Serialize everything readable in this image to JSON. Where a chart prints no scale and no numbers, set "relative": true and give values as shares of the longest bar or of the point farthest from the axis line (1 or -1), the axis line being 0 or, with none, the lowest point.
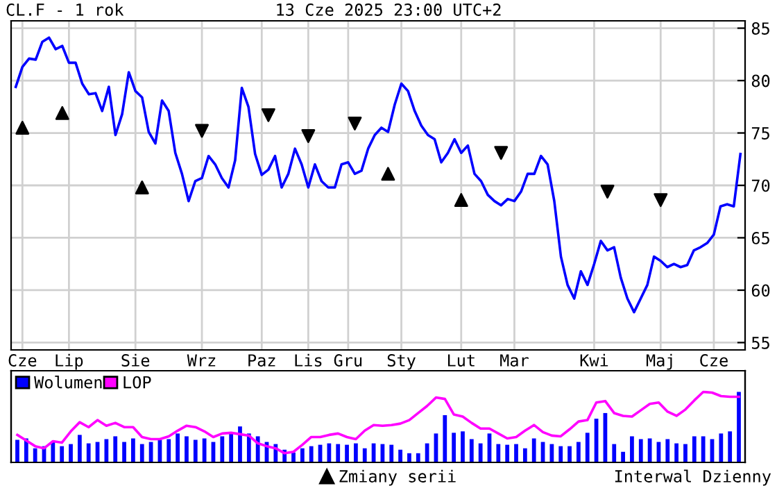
{
  "chart_data": [
    {
      "type": "line",
      "title": "CL.F - 1 rok",
      "subtitle": "13 Cze 2025 23:00 UTC+2",
      "annotations": [
        "Interwal Dzienny"
      ],
      "ylim": [
        54.3,
        85.7
      ],
      "yticks": [
        55,
        60,
        65,
        70,
        75,
        80,
        85
      ],
      "grid": true,
      "legend": "bottom",
      "categories": [
        null,
        "Cze",
        null,
        null,
        null,
        null,
        null,
        null,
        "Lip",
        null,
        null,
        null,
        null,
        null,
        null,
        null,
        null,
        null,
        "Sie",
        null,
        null,
        null,
        null,
        null,
        null,
        null,
        null,
        null,
        "Wrz",
        null,
        null,
        null,
        null,
        null,
        null,
        null,
        null,
        "Paz",
        null,
        null,
        null,
        null,
        null,
        null,
        "Lis",
        null,
        null,
        null,
        null,
        null,
        "Gru",
        null,
        null,
        null,
        null,
        null,
        null,
        null,
        "Sty",
        null,
        null,
        null,
        null,
        null,
        null,
        null,
        null,
        "Lut",
        null,
        null,
        null,
        null,
        null,
        null,
        null,
        "Mar",
        null,
        null,
        null,
        null,
        null,
        null,
        null,
        null,
        null,
        null,
        null,
        "Kwi",
        null,
        null,
        null,
        null,
        null,
        null,
        null,
        null,
        null,
        "Maj",
        null,
        null,
        null,
        null,
        null,
        null,
        null,
        "Cze",
        null,
        null,
        null,
        null
      ],
      "series": [
        {
          "color": "#0000ff",
          "values": [
            79.4,
            81.3,
            82.1,
            82.0,
            83.7,
            84.1,
            83.0,
            83.3,
            81.7,
            81.7,
            79.7,
            78.7,
            78.8,
            77.1,
            79.4,
            74.8,
            76.8,
            80.8,
            79.0,
            78.4,
            75.1,
            74.0,
            78.1,
            77.1,
            73.1,
            71.1,
            68.5,
            70.4,
            70.7,
            72.8,
            72.0,
            70.7,
            69.8,
            72.4,
            79.3,
            77.5,
            73.0,
            71.0,
            71.5,
            72.8,
            69.8,
            71.1,
            73.5,
            72.0,
            69.8,
            72.0,
            70.4,
            69.8,
            69.8,
            72.0,
            72.2,
            71.1,
            71.4,
            73.5,
            74.8,
            75.5,
            75.1,
            77.7,
            79.7,
            79.0,
            77.1,
            75.7,
            74.8,
            74.4,
            72.2,
            73.1,
            74.4,
            73.1,
            73.8,
            71.1,
            70.4,
            69.1,
            68.5,
            68.1,
            68.7,
            68.5,
            69.4,
            71.1,
            71.1,
            72.8,
            72.0,
            68.5,
            63.2,
            60.5,
            59.2,
            61.8,
            60.5,
            62.5,
            64.7,
            63.8,
            64.1,
            61.2,
            59.2,
            57.9,
            59.2,
            60.5,
            63.2,
            62.8,
            62.2,
            62.5,
            62.2,
            62.4,
            63.8,
            64.1,
            64.5,
            65.3,
            68.0,
            68.2,
            68.0,
            73.0
          ]
        },
        {
          "type": "scatter",
          "name": "Zmiany serii",
          "color": "#000000",
          "marker": "triangle",
          "values": [
            null,
            75.5,
            null,
            null,
            null,
            null,
            null,
            76.9,
            null,
            null,
            null,
            null,
            null,
            null,
            null,
            null,
            null,
            null,
            null,
            69.8,
            null,
            null,
            null,
            null,
            null,
            null,
            null,
            null,
            null,
            null,
            null,
            null,
            null,
            null,
            null,
            null,
            null,
            null,
            null,
            null,
            null,
            null,
            null,
            null,
            null,
            null,
            null,
            null,
            null,
            null,
            null,
            null,
            null,
            null,
            null,
            null,
            71.1,
            null,
            null,
            null,
            null,
            null,
            null,
            null,
            null,
            null,
            null,
            68.6,
            null,
            null,
            null,
            null,
            null,
            null,
            null,
            null,
            null,
            null,
            null,
            null,
            null,
            null,
            null,
            null,
            null,
            null,
            null,
            null,
            null,
            null,
            null,
            null,
            null,
            null,
            null,
            null,
            null,
            null,
            null,
            null,
            null,
            null,
            null,
            null,
            null,
            null,
            null,
            null,
            null,
            null
          ]
        },
        {
          "type": "scatter",
          "color": "#000000",
          "marker": "triangle_down",
          "values": [
            null,
            null,
            null,
            null,
            null,
            null,
            null,
            null,
            null,
            null,
            null,
            null,
            null,
            null,
            null,
            null,
            null,
            null,
            null,
            null,
            null,
            null,
            null,
            null,
            null,
            null,
            null,
            null,
            75.2,
            null,
            null,
            null,
            null,
            null,
            null,
            null,
            null,
            null,
            76.7,
            null,
            null,
            null,
            null,
            null,
            74.7,
            null,
            null,
            null,
            null,
            null,
            null,
            75.9,
            null,
            null,
            null,
            null,
            null,
            null,
            null,
            null,
            null,
            null,
            null,
            null,
            null,
            null,
            null,
            null,
            null,
            null,
            null,
            null,
            null,
            73.1,
            null,
            null,
            null,
            null,
            null,
            null,
            null,
            null,
            null,
            null,
            null,
            null,
            null,
            null,
            null,
            69.4,
            null,
            null,
            null,
            null,
            null,
            null,
            null,
            68.6,
            null,
            null,
            null,
            null,
            null,
            null,
            null,
            null,
            null,
            null,
            null,
            null
          ]
        }
      ]
    },
    {
      "type": "bar",
      "relative": true,
      "legend": "top left",
      "categories": [
        null,
        null,
        null,
        null,
        null,
        null,
        null,
        null,
        null,
        null,
        null,
        null,
        null,
        null,
        null,
        null,
        null,
        null,
        null,
        null,
        null,
        null,
        null,
        null,
        null,
        null,
        null,
        null,
        null,
        null,
        null,
        null,
        null,
        null,
        null,
        null,
        null,
        null,
        null,
        null,
        null,
        null,
        null,
        null,
        null,
        null,
        null,
        null,
        null,
        null,
        null,
        null,
        null,
        null,
        null,
        null,
        null,
        null,
        null,
        null,
        null,
        null,
        null,
        null,
        null,
        null,
        null,
        null,
        null,
        null,
        null,
        null,
        null,
        null,
        null,
        null,
        null,
        null,
        null,
        null,
        null,
        null
      ],
      "series": [
        {
          "name": "Wolumen",
          "color": "#0000ff",
          "values": [
            0.32,
            0.34,
            0.2,
            0.23,
            0.29,
            0.23,
            0.26,
            0.39,
            0.27,
            0.29,
            0.33,
            0.37,
            0.29,
            0.34,
            0.26,
            0.29,
            0.32,
            0.33,
            0.41,
            0.37,
            0.32,
            0.34,
            0.29,
            0.37,
            0.41,
            0.51,
            0.41,
            0.37,
            0.29,
            0.26,
            0.18,
            0.14,
            0.2,
            0.23,
            0.25,
            0.27,
            0.26,
            0.25,
            0.27,
            0.2,
            0.27,
            0.26,
            0.25,
            0.18,
            0.13,
            0.13,
            0.27,
            0.41,
            0.67,
            0.42,
            0.44,
            0.33,
            0.27,
            0.41,
            0.26,
            0.25,
            0.26,
            0.2,
            0.34,
            0.29,
            0.26,
            0.23,
            0.23,
            0.29,
            0.42,
            0.62,
            0.7,
            0.26,
            0.15,
            0.37,
            0.33,
            0.34,
            0.29,
            0.33,
            0.27,
            0.26,
            0.37,
            0.37,
            0.33,
            0.41,
            0.44,
            1.0
          ]
        }
      ]
    },
    {
      "type": "line",
      "relative": true,
      "legend": "top left",
      "categories": [
        null,
        null,
        null,
        null,
        null,
        null,
        null,
        null,
        null,
        null,
        null,
        null,
        null,
        null,
        null,
        null,
        null,
        null,
        null,
        null,
        null,
        null,
        null,
        null,
        null,
        null,
        null,
        null,
        null,
        null,
        null,
        null,
        null,
        null,
        null,
        null,
        null,
        null,
        null,
        null,
        null,
        null,
        null,
        null,
        null,
        null,
        null,
        null,
        null,
        null,
        null,
        null,
        null,
        null,
        null,
        null,
        null,
        null,
        null,
        null,
        null,
        null,
        null,
        null,
        null,
        null,
        null,
        null,
        null,
        null,
        null,
        null,
        null,
        null,
        null,
        null,
        null,
        null,
        null,
        null,
        null,
        null
      ],
      "series": [
        {
          "name": "LOP",
          "color": "#ff00ff",
          "values": [
            0.39,
            0.31,
            0.23,
            0.2,
            0.3,
            0.28,
            0.44,
            0.57,
            0.5,
            0.6,
            0.52,
            0.56,
            0.5,
            0.5,
            0.36,
            0.33,
            0.33,
            0.37,
            0.45,
            0.52,
            0.5,
            0.44,
            0.36,
            0.41,
            0.42,
            0.4,
            0.38,
            0.27,
            0.23,
            0.2,
            0.13,
            0.15,
            0.25,
            0.36,
            0.36,
            0.39,
            0.41,
            0.36,
            0.33,
            0.45,
            0.53,
            0.52,
            0.53,
            0.55,
            0.6,
            0.7,
            0.8,
            0.92,
            0.9,
            0.68,
            0.65,
            0.56,
            0.48,
            0.48,
            0.41,
            0.34,
            0.36,
            0.45,
            0.53,
            0.43,
            0.38,
            0.37,
            0.47,
            0.58,
            0.6,
            0.85,
            0.87,
            0.7,
            0.66,
            0.65,
            0.74,
            0.83,
            0.85,
            0.72,
            0.66,
            0.75,
            0.88,
            1.0,
            0.99,
            0.94,
            0.93,
            0.93
          ]
        }
      ]
    }
  ]
}
